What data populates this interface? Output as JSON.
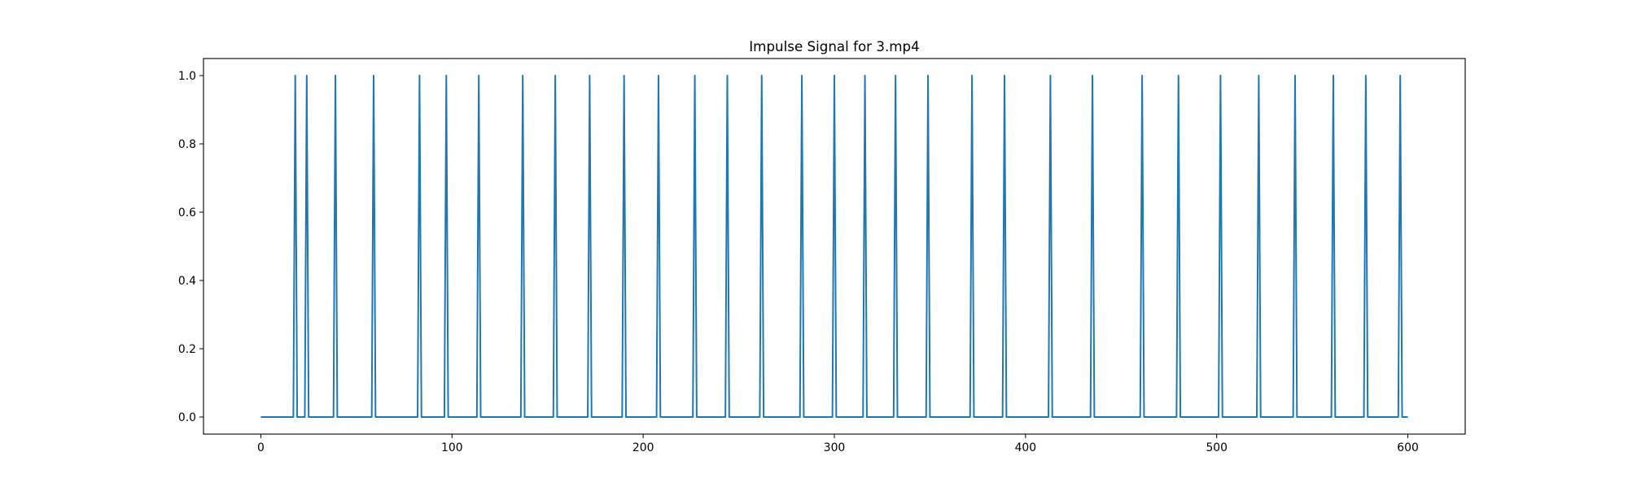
{
  "chart_data": {
    "type": "line",
    "title": "Impulse Signal for 3.mp4",
    "xlabel": "",
    "ylabel": "",
    "x_range": [
      0,
      600
    ],
    "xlim": [
      -30,
      630
    ],
    "ylim": [
      -0.05,
      1.05
    ],
    "baseline_value": 0.0,
    "impulse_value": 1.0,
    "impulse_x": [
      18,
      24,
      39,
      59,
      83,
      97,
      114,
      137,
      154,
      172,
      190,
      208,
      227,
      244,
      262,
      283,
      300,
      316,
      332,
      349,
      372,
      389,
      413,
      435,
      461,
      480,
      502,
      522,
      541,
      561,
      578,
      596
    ],
    "xticks": [
      "0",
      "100",
      "200",
      "300",
      "400",
      "500",
      "600"
    ],
    "yticks": [
      "0.0",
      "0.2",
      "0.4",
      "0.6",
      "0.8",
      "1.0"
    ],
    "grid": false,
    "line_color": "#1f77b4"
  }
}
